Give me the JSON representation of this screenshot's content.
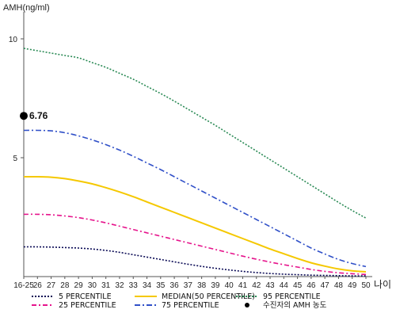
{
  "chart_data": {
    "type": "line",
    "ylabel": "AMH(ng/ml)",
    "xlabel": "나이",
    "ylim": [
      0,
      11
    ],
    "yticks": [
      5,
      10
    ],
    "grid": false,
    "legend_position": "bottom",
    "categories": [
      "16-25",
      "26",
      "27",
      "28",
      "29",
      "30",
      "31",
      "32",
      "33",
      "34",
      "35",
      "36",
      "37",
      "38",
      "39",
      "40",
      "41",
      "42",
      "43",
      "44",
      "45",
      "46",
      "47",
      "48",
      "49",
      "50"
    ],
    "series": [
      {
        "name": "5 PERCENTILE",
        "color": "#0a0a55",
        "dash": "2,2",
        "values": [
          1.25,
          1.25,
          1.24,
          1.22,
          1.2,
          1.16,
          1.1,
          1.02,
          0.92,
          0.82,
          0.72,
          0.62,
          0.52,
          0.43,
          0.35,
          0.28,
          0.22,
          0.17,
          0.13,
          0.1,
          0.08,
          0.06,
          0.05,
          0.04,
          0.03,
          0.03
        ]
      },
      {
        "name": "25 PERCENTILE",
        "color": "#e6148c",
        "dash": "6,3,2,3",
        "values": [
          2.62,
          2.62,
          2.6,
          2.55,
          2.48,
          2.38,
          2.26,
          2.12,
          1.98,
          1.84,
          1.7,
          1.56,
          1.42,
          1.28,
          1.14,
          1.0,
          0.86,
          0.73,
          0.61,
          0.5,
          0.4,
          0.3,
          0.22,
          0.16,
          0.12,
          0.09
        ]
      },
      {
        "name": "MEDIAN(50 PERCENTILE)",
        "color": "#f5c800",
        "dash": "",
        "values": [
          4.2,
          4.2,
          4.18,
          4.12,
          4.02,
          3.9,
          3.74,
          3.56,
          3.36,
          3.14,
          2.92,
          2.7,
          2.48,
          2.26,
          2.04,
          1.82,
          1.6,
          1.38,
          1.16,
          0.96,
          0.76,
          0.58,
          0.44,
          0.32,
          0.24,
          0.2
        ]
      },
      {
        "name": "75 PERCENTILE",
        "color": "#3050c8",
        "dash": "7,3,2,3",
        "values": [
          6.15,
          6.15,
          6.13,
          6.05,
          5.92,
          5.75,
          5.55,
          5.32,
          5.06,
          4.78,
          4.5,
          4.2,
          3.9,
          3.6,
          3.3,
          3.0,
          2.7,
          2.4,
          2.1,
          1.8,
          1.5,
          1.2,
          0.95,
          0.72,
          0.55,
          0.42
        ]
      },
      {
        "name": "95 PERCENTILE",
        "color": "#2a8a55",
        "dash": "2,2",
        "values": [
          9.6,
          9.5,
          9.4,
          9.3,
          9.2,
          9.0,
          8.8,
          8.55,
          8.3,
          8.0,
          7.7,
          7.38,
          7.04,
          6.7,
          6.36,
          6.0,
          5.64,
          5.28,
          4.92,
          4.56,
          4.2,
          3.84,
          3.48,
          3.12,
          2.78,
          2.46
        ]
      }
    ],
    "marker": {
      "label": "6.76",
      "x": "16-25",
      "value": 6.76,
      "color": "#000000"
    },
    "legend": [
      {
        "label": "5 PERCENTILE",
        "color": "#0a0a55",
        "dash": "2,2",
        "kind": "line"
      },
      {
        "label": "25 PERCENTILE",
        "color": "#e6148c",
        "dash": "6,3,2,3",
        "kind": "line"
      },
      {
        "label": "MEDIAN(50 PERCENTILE)",
        "color": "#f5c800",
        "dash": "",
        "kind": "line"
      },
      {
        "label": "75 PERCENTILE",
        "color": "#3050c8",
        "dash": "7,3,2,3",
        "kind": "line"
      },
      {
        "label": "95 PERCENTILE",
        "color": "#2a8a55",
        "dash": "2,2",
        "kind": "line"
      },
      {
        "label": "수진자의 AMH 농도",
        "color": "#000000",
        "dash": "",
        "kind": "dot"
      }
    ]
  }
}
